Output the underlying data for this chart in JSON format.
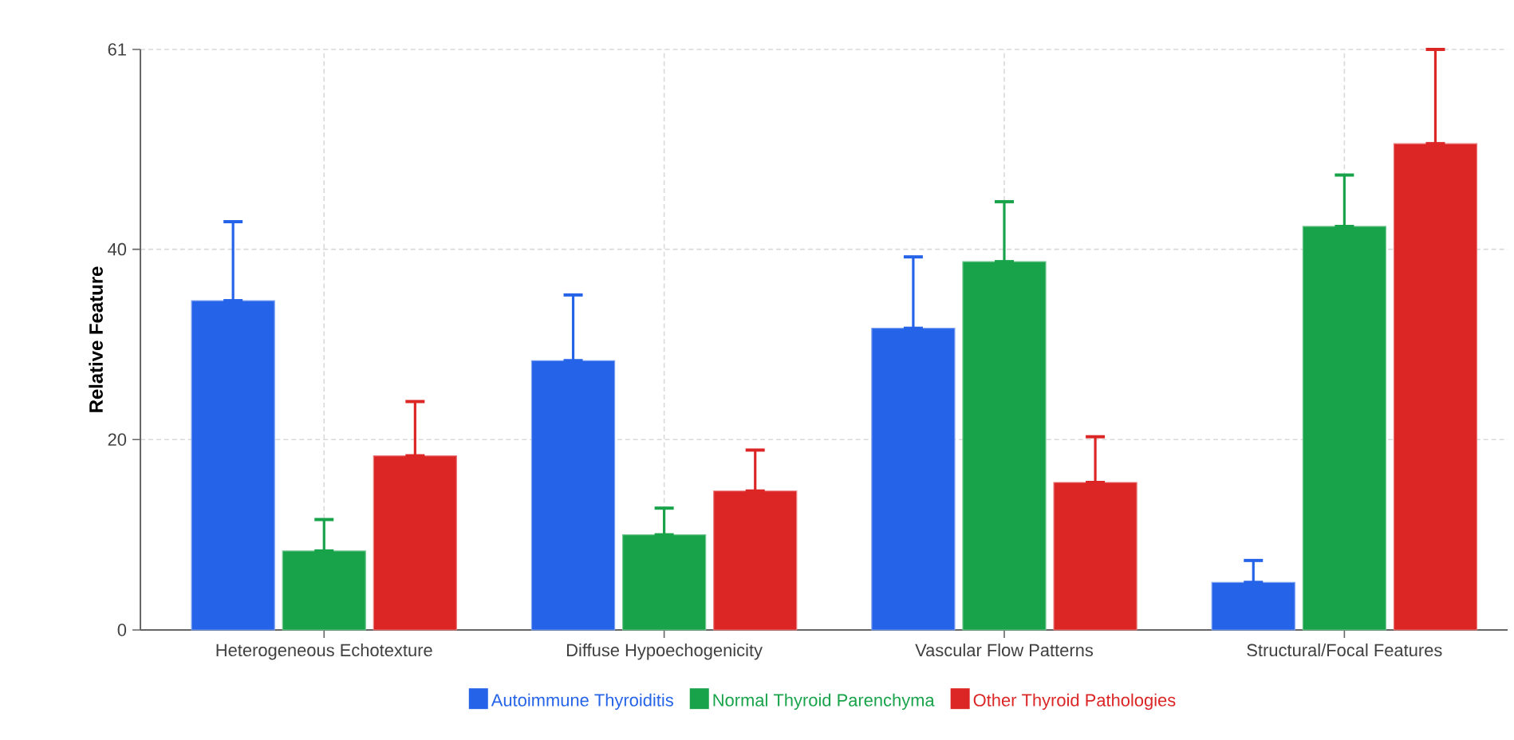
{
  "chart_data": {
    "type": "bar",
    "ylabel": "Relative Feature",
    "categories": [
      "Heterogeneous Echotexture",
      "Diffuse Hypoechogenicity",
      "Vascular Flow Patterns",
      "Structural/Focal Features"
    ],
    "series": [
      {
        "name": "Autoimmune Thyroiditis",
        "color": "#2563e8",
        "values": [
          34.6,
          28.3,
          31.7,
          5.0
        ],
        "errors": [
          [
            34.6,
            42.9
          ],
          [
            28.3,
            35.2
          ],
          [
            31.7,
            39.2
          ],
          [
            5.0,
            7.3
          ]
        ]
      },
      {
        "name": "Normal Thyroid Parenchyma",
        "color": "#18a34a",
        "values": [
          8.3,
          10.0,
          38.7,
          42.4
        ],
        "errors": [
          [
            8.3,
            11.6
          ],
          [
            10.0,
            12.8
          ],
          [
            38.7,
            45.0
          ],
          [
            42.4,
            47.8
          ]
        ]
      },
      {
        "name": "Other Thyroid Pathologies",
        "color": "#dc2626",
        "values": [
          18.3,
          14.6,
          15.5,
          51.1
        ],
        "errors": [
          [
            18.3,
            24.0
          ],
          [
            14.6,
            18.9
          ],
          [
            15.5,
            20.3
          ],
          [
            51.1,
            61.0
          ]
        ]
      }
    ],
    "ylim": [
      0,
      61
    ],
    "yticks": [
      0,
      20,
      40,
      61
    ],
    "grid": true,
    "legend": "bottom"
  }
}
